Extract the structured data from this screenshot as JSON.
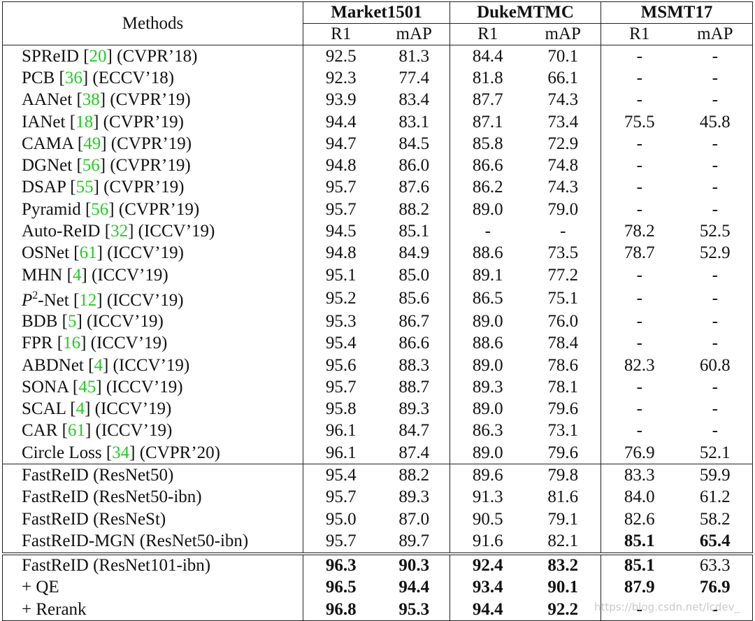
{
  "table": {
    "header": {
      "methods": "Methods",
      "groups": [
        {
          "name": "Market1501",
          "cols": [
            "R1",
            "mAP"
          ]
        },
        {
          "name": "DukeMTMC",
          "cols": [
            "R1",
            "mAP"
          ]
        },
        {
          "name": "MSMT17",
          "cols": [
            "R1",
            "mAP"
          ]
        }
      ]
    },
    "sections": [
      {
        "rows": [
          {
            "method": [
              {
                "text": "SPReID ["
              },
              {
                "text": "20",
                "style": "ref"
              },
              {
                "text": "] (CVPR’18)"
              }
            ],
            "cells": [
              "92.5",
              "81.3",
              "84.4",
              "70.1",
              "-",
              "-"
            ],
            "bold": []
          },
          {
            "method": [
              {
                "text": "PCB ["
              },
              {
                "text": "36",
                "style": "ref"
              },
              {
                "text": "] (ECCV’18)"
              }
            ],
            "cells": [
              "92.3",
              "77.4",
              "81.8",
              "66.1",
              "-",
              "-"
            ],
            "bold": []
          },
          {
            "method": [
              {
                "text": "AANet ["
              },
              {
                "text": "38",
                "style": "ref"
              },
              {
                "text": "] (CVPR’19)"
              }
            ],
            "cells": [
              "93.9",
              "83.4",
              "87.7",
              "74.3",
              "-",
              "-"
            ],
            "bold": []
          },
          {
            "method": [
              {
                "text": "IANet ["
              },
              {
                "text": "18",
                "style": "ref"
              },
              {
                "text": "] (CVPR’19)"
              }
            ],
            "cells": [
              "94.4",
              "83.1",
              "87.1",
              "73.4",
              "75.5",
              "45.8"
            ],
            "bold": []
          },
          {
            "method": [
              {
                "text": "CAMA ["
              },
              {
                "text": "49",
                "style": "ref"
              },
              {
                "text": "] (CVPR’19)"
              }
            ],
            "cells": [
              "94.7",
              "84.5",
              "85.8",
              "72.9",
              "-",
              "-"
            ],
            "bold": []
          },
          {
            "method": [
              {
                "text": "DGNet ["
              },
              {
                "text": "56",
                "style": "ref"
              },
              {
                "text": "] (CVPR’19)"
              }
            ],
            "cells": [
              "94.8",
              "86.0",
              "86.6",
              "74.8",
              "-",
              "-"
            ],
            "bold": []
          },
          {
            "method": [
              {
                "text": "DSAP ["
              },
              {
                "text": "55",
                "style": "ref"
              },
              {
                "text": "] (CVPR’19)"
              }
            ],
            "cells": [
              "95.7",
              "87.6",
              "86.2",
              "74.3",
              "-",
              "-"
            ],
            "bold": []
          },
          {
            "method": [
              {
                "text": "Pyramid ["
              },
              {
                "text": "56",
                "style": "ref"
              },
              {
                "text": "] (CVPR’19)"
              }
            ],
            "cells": [
              "95.7",
              "88.2",
              "89.0",
              "79.0",
              "-",
              "-"
            ],
            "bold": []
          },
          {
            "method": [
              {
                "text": "Auto-ReID ["
              },
              {
                "text": "32",
                "style": "ref"
              },
              {
                "text": "] (ICCV’19)"
              }
            ],
            "cells": [
              "94.5",
              "85.1",
              "-",
              "-",
              "78.2",
              "52.5"
            ],
            "bold": []
          },
          {
            "method": [
              {
                "text": "OSNet ["
              },
              {
                "text": "61",
                "style": "ref"
              },
              {
                "text": "] (ICCV’19)"
              }
            ],
            "cells": [
              "94.8",
              "84.9",
              "88.6",
              "73.5",
              "78.7",
              "52.9"
            ],
            "bold": []
          },
          {
            "method": [
              {
                "text": "MHN ["
              },
              {
                "text": "4",
                "style": "ref"
              },
              {
                "text": "] (ICCV’19)"
              }
            ],
            "cells": [
              "95.1",
              "85.0",
              "89.1",
              "77.2",
              "-",
              "-"
            ],
            "bold": []
          },
          {
            "method": [
              {
                "text": "P",
                "style": "italic"
              },
              {
                "text": "2",
                "style": "sup"
              },
              {
                "text": "-Net ["
              },
              {
                "text": "12",
                "style": "ref"
              },
              {
                "text": "] (ICCV’19)"
              }
            ],
            "cells": [
              "95.2",
              "85.6",
              "86.5",
              "75.1",
              "-",
              "-"
            ],
            "bold": []
          },
          {
            "method": [
              {
                "text": "BDB ["
              },
              {
                "text": "5",
                "style": "ref"
              },
              {
                "text": "] (ICCV’19)"
              }
            ],
            "cells": [
              "95.3",
              "86.7",
              "89.0",
              "76.0",
              "-",
              "-"
            ],
            "bold": []
          },
          {
            "method": [
              {
                "text": "FPR ["
              },
              {
                "text": "16",
                "style": "ref"
              },
              {
                "text": "] (ICCV’19)"
              }
            ],
            "cells": [
              "95.4",
              "86.6",
              "88.6",
              "78.4",
              "-",
              "-"
            ],
            "bold": []
          },
          {
            "method": [
              {
                "text": "ABDNet ["
              },
              {
                "text": "4",
                "style": "ref"
              },
              {
                "text": "] (ICCV’19)"
              }
            ],
            "cells": [
              "95.6",
              "88.3",
              "89.0",
              "78.6",
              "82.3",
              "60.8"
            ],
            "bold": []
          },
          {
            "method": [
              {
                "text": "SONA ["
              },
              {
                "text": "45",
                "style": "ref"
              },
              {
                "text": "] (ICCV’19)"
              }
            ],
            "cells": [
              "95.7",
              "88.7",
              "89.3",
              "78.1",
              "-",
              "-"
            ],
            "bold": []
          },
          {
            "method": [
              {
                "text": "SCAL ["
              },
              {
                "text": "4",
                "style": "ref"
              },
              {
                "text": "] (ICCV’19)"
              }
            ],
            "cells": [
              "95.8",
              "89.3",
              "89.0",
              "79.6",
              "-",
              "-"
            ],
            "bold": []
          },
          {
            "method": [
              {
                "text": "CAR ["
              },
              {
                "text": "61",
                "style": "ref"
              },
              {
                "text": "] (ICCV’19)"
              }
            ],
            "cells": [
              "96.1",
              "84.7",
              "86.3",
              "73.1",
              "-",
              "-"
            ],
            "bold": []
          },
          {
            "method": [
              {
                "text": "Circle Loss ["
              },
              {
                "text": "34",
                "style": "ref"
              },
              {
                "text": "] (CVPR’20)"
              }
            ],
            "cells": [
              "96.1",
              "87.4",
              "89.0",
              "79.6",
              "76.9",
              "52.1"
            ],
            "bold": []
          }
        ]
      },
      {
        "rows": [
          {
            "method": [
              {
                "text": "FastReID (ResNet50)"
              }
            ],
            "cells": [
              "95.4",
              "88.2",
              "89.6",
              "79.8",
              "83.3",
              "59.9"
            ],
            "bold": []
          },
          {
            "method": [
              {
                "text": "FastReID (ResNet50-ibn)"
              }
            ],
            "cells": [
              "95.7",
              "89.3",
              "91.3",
              "81.6",
              "84.0",
              "61.2"
            ],
            "bold": []
          },
          {
            "method": [
              {
                "text": "FastReID (ResNeSt)"
              }
            ],
            "cells": [
              "95.0",
              "87.0",
              "90.5",
              "79.1",
              "82.6",
              "58.2"
            ],
            "bold": []
          },
          {
            "method": [
              {
                "text": "FastReID-MGN (ResNet50-ibn)"
              }
            ],
            "cells": [
              "95.7",
              "89.7",
              "91.6",
              "82.1",
              "85.1",
              "65.4"
            ],
            "bold": [
              4,
              5
            ]
          }
        ]
      },
      {
        "rows": [
          {
            "method": [
              {
                "text": "FastReID (ResNet101-ibn)"
              }
            ],
            "cells": [
              "96.3",
              "90.3",
              "92.4",
              "83.2",
              "85.1",
              "63.3"
            ],
            "bold": [
              0,
              1,
              2,
              3,
              4
            ]
          },
          {
            "method": [
              {
                "text": "+ QE"
              }
            ],
            "cells": [
              "96.5",
              "94.4",
              "93.4",
              "90.1",
              "87.9",
              "76.9"
            ],
            "bold": [
              0,
              1,
              2,
              3,
              4,
              5
            ]
          },
          {
            "method": [
              {
                "text": "+ Rerank"
              }
            ],
            "cells": [
              "96.8",
              "95.3",
              "94.4",
              "92.2",
              "-",
              "-"
            ],
            "bold": [
              0,
              1,
              2,
              3,
              4,
              5
            ]
          }
        ]
      }
    ]
  },
  "watermark": "https://blog.csdn.net/lcdev_"
}
